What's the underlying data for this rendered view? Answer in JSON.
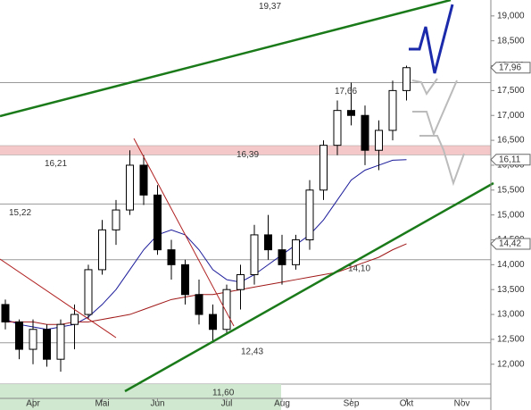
{
  "chart_data": {
    "type": "candlestick",
    "categories": [
      null,
      null,
      "Apr",
      null,
      null,
      null,
      null,
      "Mai",
      null,
      null,
      null,
      "Jun",
      null,
      null,
      null,
      null,
      "Jul",
      null,
      null,
      null,
      "Aug",
      null,
      null,
      null,
      null,
      "Sep",
      null,
      null,
      null,
      "Okt",
      null,
      null,
      null,
      "Nov"
    ],
    "open": [
      13200,
      12850,
      12300,
      12700,
      12100,
      12800,
      13000,
      13900,
      14700,
      15100,
      16000,
      15400,
      14300,
      14000,
      13400,
      13000,
      12700,
      13500,
      13800,
      14600,
      14300,
      14000,
      14500,
      15500,
      16400,
      17100,
      17000,
      16300,
      16700,
      17500,
      null,
      null,
      null,
      null
    ],
    "high": [
      13300,
      12900,
      12900,
      12800,
      12900,
      13200,
      14000,
      14900,
      15300,
      16300,
      16200,
      15600,
      14500,
      14100,
      13700,
      13200,
      13600,
      14000,
      14800,
      15000,
      14600,
      14600,
      15700,
      16500,
      17300,
      17660,
      17200,
      16900,
      17700,
      18000,
      null,
      null,
      null,
      null
    ],
    "low": [
      12700,
      12100,
      12000,
      11950,
      11850,
      12300,
      12900,
      13800,
      14400,
      15000,
      15200,
      14200,
      13700,
      13200,
      12800,
      12430,
      12600,
      13100,
      13600,
      14100,
      13600,
      13900,
      14300,
      15300,
      16200,
      16800,
      16000,
      15900,
      16500,
      17300,
      null,
      null,
      null,
      null
    ],
    "close": [
      12850,
      12300,
      12700,
      12100,
      12800,
      13000,
      13900,
      14700,
      15100,
      16000,
      15400,
      14300,
      14000,
      13400,
      13000,
      12700,
      13500,
      13800,
      14600,
      14300,
      14000,
      14500,
      15500,
      16400,
      17100,
      17000,
      16300,
      16700,
      17500,
      17960,
      null,
      null,
      null,
      null
    ],
    "series": [
      {
        "color": "#1a1a9a",
        "values": [
          12900,
          12800,
          12750,
          12700,
          12750,
          12800,
          12950,
          13200,
          13500,
          13900,
          14300,
          14600,
          14700,
          14600,
          14300,
          13900,
          13700,
          13650,
          13800,
          14000,
          14200,
          14400,
          14600,
          14900,
          15300,
          15700,
          15900,
          16000,
          16100,
          16110,
          null,
          null,
          null,
          null
        ]
      },
      {
        "color": "#a01818",
        "values": [
          12850,
          12850,
          12850,
          12800,
          12800,
          12850,
          12850,
          12900,
          12950,
          13000,
          13100,
          13200,
          13300,
          13350,
          13400,
          13400,
          13450,
          13500,
          13550,
          13600,
          13650,
          13700,
          13750,
          13800,
          13850,
          13950,
          14050,
          14150,
          14300,
          14420,
          null,
          null,
          null,
          null
        ]
      }
    ],
    "levels": [
      {
        "value": 19370,
        "label": "19,37"
      },
      {
        "value": 17660,
        "label": "17,66"
      },
      {
        "value": 16390,
        "label": "16,39"
      },
      {
        "value": 16210,
        "label": "16,21"
      },
      {
        "value": 15220,
        "label": "15,22"
      },
      {
        "value": 14100,
        "label": "14,10"
      },
      {
        "value": 12430,
        "label": "12,43"
      },
      {
        "value": 11600,
        "label": "11,60"
      }
    ],
    "price_tags": [
      {
        "value": 17960,
        "label": "17,96"
      },
      {
        "value": 16110,
        "label": "16,11"
      },
      {
        "value": 14420,
        "label": "14,42"
      }
    ],
    "ylim": [
      11080,
      19320
    ],
    "yticks": [
      {
        "value": 12000,
        "label": "12,000"
      },
      {
        "value": 12500,
        "label": "12,500"
      },
      {
        "value": 13000,
        "label": "13,000"
      },
      {
        "value": 13500,
        "label": "13,500"
      },
      {
        "value": 14000,
        "label": "14,000"
      },
      {
        "value": 14500,
        "label": "14,500"
      },
      {
        "value": 15000,
        "label": "15,000"
      },
      {
        "value": 15500,
        "label": "15,500"
      },
      {
        "value": 16000,
        "label": "16,000"
      },
      {
        "value": 16500,
        "label": "16,500"
      },
      {
        "value": 17000,
        "label": "17,000"
      },
      {
        "value": 17500,
        "label": "17,500"
      },
      {
        "value": 18000,
        "label": "18,000"
      },
      {
        "value": 18500,
        "label": "18,500"
      },
      {
        "value": 19000,
        "label": "19,000"
      }
    ]
  }
}
